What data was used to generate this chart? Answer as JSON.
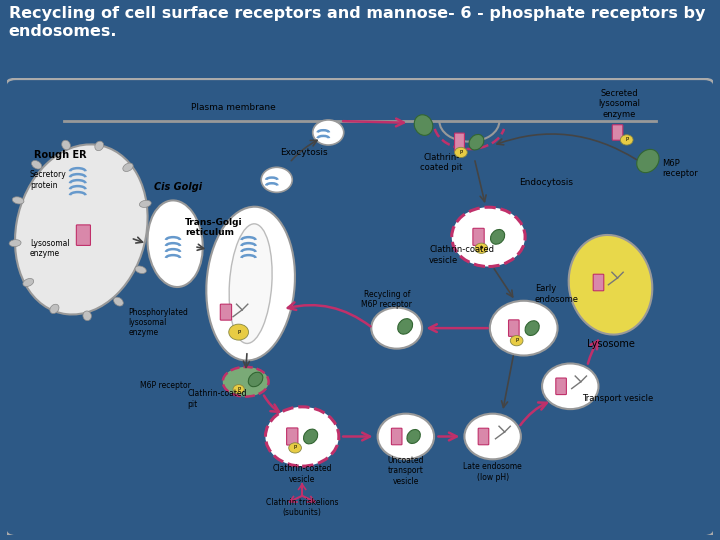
{
  "title_line1": "Recycling of cell surface receptors and mannose- 6 - phosphate receptors by",
  "title_line2": "endosomes.",
  "title_color": "white",
  "title_bg_color": "#2d5986",
  "title_fontsize": 11.5,
  "title_bold": true,
  "diagram_bg_color": "white",
  "outer_bg_color": "#2d5986",
  "fig_width": 7.2,
  "fig_height": 5.4,
  "dpi": 100,
  "labels": {
    "plasma_membrane": "Plasma membrane",
    "rough_er": "Rough ER",
    "cis_golgi": "Cis Golgi",
    "trans_golgi": "Trans-Golgi\nreticulum",
    "exocytosis": "Exocytosis",
    "secreted_lysosomal": "Secreted\nlysosomal\nenzyme",
    "clathrin_coated_pit_top": "Clathrin-\ncoated pit",
    "endocytosis": "Endocytosis",
    "m6p_receptor_right": "M6P\nreceptor",
    "lysosome": "Lysosome",
    "clathrin_coated_vesicle_right": "Clathrin-coated\nvesicle",
    "early_endosome": "Early\nendosome",
    "recycling_m6p": "Recycling of\nM6P receptor",
    "secretory_protein": "Secretory\nprotein",
    "lysosomal_enzyme": "Lysosomal\nenzyme",
    "phosphorylated": "Phosphorylated\nlysosomal\nenzyme",
    "m6p_receptor_left": "M6P receptor",
    "clathrin_coated_pit_left": "Clathrin-coated\npit",
    "clathrin_coated_vesicle_bottom": "Clathrin-coated\nvesicle",
    "clathrin_triskelions": "Clathrin triskelions\n(subunits)",
    "uncoated_transport": "Uncoated\ntransport\nvesicle",
    "late_endosome": "Late endosome\n(low pH)",
    "transport_vesicle": "Transport vesicle"
  },
  "colors": {
    "clathrin_pink": "#c0306a",
    "arrow_pink": "#c0306a",
    "arrow_black": "#444444",
    "lysosome_yellow": "#e8d84a",
    "receptor_green": "#5a8c5a",
    "receptor_pink": "#d988aa",
    "receptor_blue": "#6699cc",
    "receptor_yellow": "#e8cc44",
    "organelle_stroke": "#999999",
    "er_fill": "#e8e8e8",
    "golgi_fill": "white",
    "vesicle_fill": "white"
  }
}
